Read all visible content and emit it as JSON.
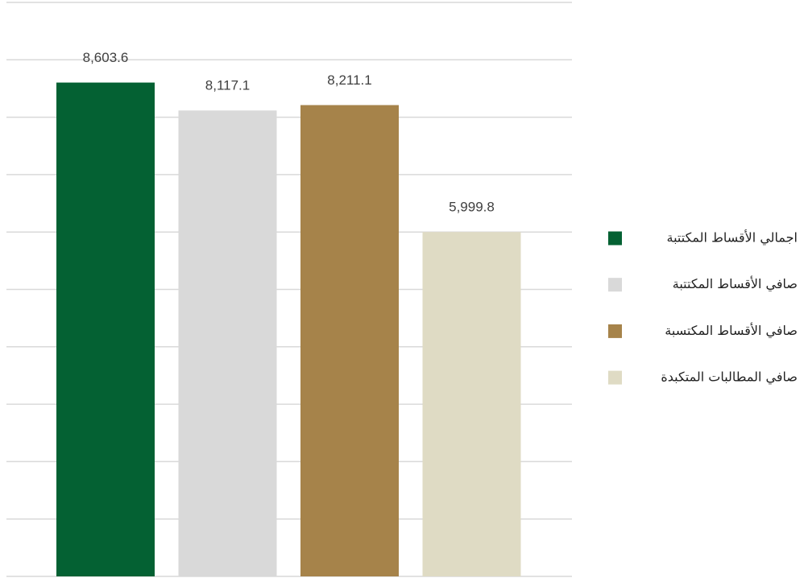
{
  "chart_data": {
    "type": "bar",
    "series": [
      {
        "name": "اجمالي الأقساط المكتتبة",
        "color": "#046133",
        "values": [
          8603.6
        ],
        "value_labels": [
          "8,603.6"
        ]
      },
      {
        "name": "صافي الأقساط المكتتبة",
        "color": "#d9d9d9",
        "values": [
          8117.1
        ],
        "value_labels": [
          "8,117.1"
        ]
      },
      {
        "name": "صافي الأقساط المكتسبة",
        "color": "#a6834a",
        "values": [
          8211.1
        ],
        "value_labels": [
          "8,211.1"
        ]
      },
      {
        "name": "صافي المطالبات المتكبدة",
        "color": "#dfdbc4",
        "values": [
          5999.8
        ],
        "value_labels": [
          "5,999.8"
        ]
      }
    ],
    "ylim": [
      0,
      10000
    ],
    "yticks": [
      0,
      1000,
      2000,
      3000,
      4000,
      5000,
      6000,
      7000,
      8000,
      9000,
      10000
    ],
    "grid": true,
    "legend": "right"
  }
}
